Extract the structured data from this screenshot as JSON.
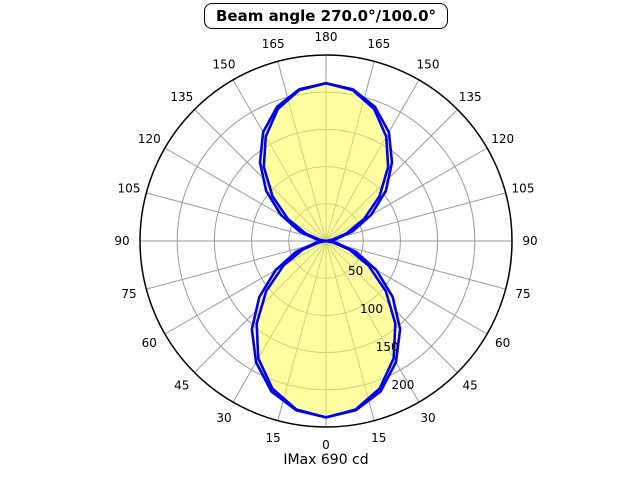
{
  "title": "Beam angle 270.0°/100.0°",
  "footer": "IMax 690 cd",
  "chart_data": {
    "type": "polar",
    "title": "Beam angle 270.0°/100.0°",
    "annotation": "IMax 690 cd",
    "imax_cd": 690,
    "beam_angles_deg": [
      270.0,
      100.0
    ],
    "fill_color": "rgba(255,255,85,0.55)",
    "grid_color": "#9a9a9a",
    "outer_circle_color": "#000000",
    "curve_color": "#0000ee",
    "radial_axis": {
      "max": 250,
      "gridline_values": [
        50,
        100,
        150,
        200
      ],
      "tick_labels": [
        "50",
        "100",
        "150",
        "200"
      ],
      "tick_label_angle_deg": 22.5
    },
    "angular_axis": {
      "spoke_step_deg": 15,
      "labels": [
        {
          "a": 0,
          "t": "0"
        },
        {
          "a": 15,
          "t": "15"
        },
        {
          "a": 30,
          "t": "30"
        },
        {
          "a": 45,
          "t": "45"
        },
        {
          "a": 60,
          "t": "60"
        },
        {
          "a": 75,
          "t": "75"
        },
        {
          "a": 90,
          "t": "90"
        },
        {
          "a": 105,
          "t": "105"
        },
        {
          "a": 120,
          "t": "120"
        },
        {
          "a": 135,
          "t": "135"
        },
        {
          "a": 150,
          "t": "150"
        },
        {
          "a": 165,
          "t": "165"
        },
        {
          "a": 180,
          "t": "180"
        },
        {
          "a": 195,
          "t": "165"
        },
        {
          "a": 210,
          "t": "150"
        },
        {
          "a": 225,
          "t": "135"
        },
        {
          "a": 240,
          "t": "120"
        },
        {
          "a": 255,
          "t": "105"
        },
        {
          "a": 270,
          "t": "90"
        },
        {
          "a": 285,
          "t": "75"
        },
        {
          "a": 300,
          "t": "60"
        },
        {
          "a": 315,
          "t": "45"
        },
        {
          "a": 330,
          "t": "30"
        },
        {
          "a": 345,
          "t": "15"
        }
      ]
    },
    "series": [
      {
        "name": "beam-curve-1",
        "angles_deg": [
          0,
          10,
          20,
          30,
          40,
          50,
          60,
          70,
          80,
          90,
          100,
          110,
          120,
          130,
          140,
          150,
          160,
          170,
          180,
          190,
          200,
          210,
          220,
          230,
          240,
          250,
          260,
          270,
          280,
          290,
          300,
          310,
          320,
          330,
          340,
          350
        ],
        "values_cd": [
          237,
          231,
          215,
          188,
          155,
          117,
          78,
          43,
          14,
          0,
          13,
          38,
          70,
          105,
          138,
          169,
          192,
          207,
          212,
          207,
          192,
          169,
          138,
          105,
          70,
          38,
          13,
          0,
          14,
          43,
          78,
          117,
          155,
          188,
          215,
          231
        ],
        "filled": true
      },
      {
        "name": "beam-curve-2",
        "angles_deg": [
          0,
          10,
          20,
          30,
          40,
          50,
          60,
          70,
          80,
          90,
          100,
          110,
          120,
          130,
          140,
          150,
          160,
          170,
          180,
          190,
          200,
          210,
          220,
          230,
          240,
          250,
          260,
          270,
          280,
          290,
          300,
          310,
          320,
          330,
          340,
          350
        ],
        "values_cd": [
          237,
          230,
          211,
          182,
          145,
          105,
          66,
          33,
          9,
          0,
          8,
          29,
          59,
          94,
          130,
          162,
          189,
          206,
          212,
          206,
          189,
          162,
          130,
          94,
          59,
          29,
          8,
          0,
          9,
          33,
          66,
          105,
          145,
          182,
          211,
          230
        ],
        "filled": false
      }
    ]
  }
}
